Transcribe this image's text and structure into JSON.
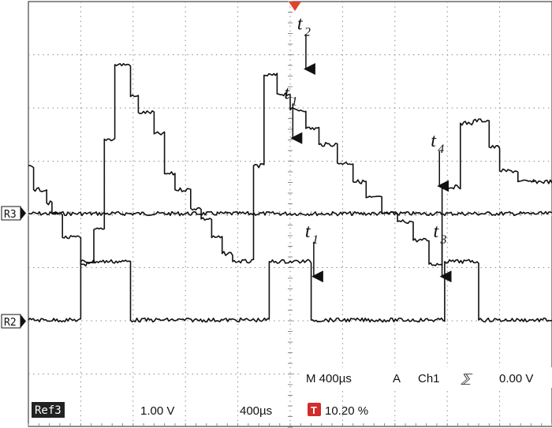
{
  "chart_data": {
    "type": "line",
    "title": "",
    "xlabel": "",
    "ylabel": "",
    "grid": true,
    "x_divisions": 10,
    "y_divisions": 8,
    "series": [
      {
        "name": "",
        "role": "reference-flat",
        "x": [
          0,
          10
        ],
        "y": [
          0,
          0
        ]
      },
      {
        "name": "",
        "role": "upper-step-waveform",
        "x": [
          0.0,
          0.1,
          0.1,
          0.35,
          0.35,
          0.45,
          0.45,
          0.65,
          0.65,
          1.0,
          1.0,
          1.25,
          1.25,
          1.45,
          1.45,
          1.65,
          1.65,
          1.95,
          1.95,
          2.1,
          2.1,
          2.4,
          2.4,
          2.6,
          2.6,
          2.8,
          2.8,
          3.1,
          3.1,
          3.3,
          3.3,
          3.5,
          3.5,
          3.7,
          3.7,
          3.9,
          3.9,
          4.3,
          4.3,
          4.5,
          4.5,
          4.75,
          4.75,
          5.0,
          5.0,
          5.3,
          5.3,
          5.55,
          5.55,
          5.9,
          5.9,
          6.2,
          6.2,
          6.45,
          6.45,
          6.75,
          6.75,
          7.05,
          7.05,
          7.35,
          7.35,
          7.65,
          7.65,
          7.9,
          7.9,
          8.25,
          8.25,
          8.5,
          8.5,
          8.8,
          8.8,
          9.0,
          9.0,
          9.35,
          9.35,
          9.65,
          9.65,
          10.0
        ],
        "y": [
          0.9,
          0.9,
          0.45,
          0.45,
          0.2,
          0.2,
          0.0,
          0.0,
          -0.45,
          -0.45,
          -0.95,
          -0.95,
          -0.3,
          -0.3,
          1.4,
          1.4,
          2.8,
          2.8,
          2.2,
          2.2,
          1.9,
          1.9,
          1.5,
          1.5,
          0.75,
          0.75,
          0.45,
          0.45,
          0.1,
          0.1,
          -0.1,
          -0.1,
          -0.45,
          -0.45,
          -0.75,
          -0.75,
          -0.9,
          -0.9,
          0.9,
          0.9,
          2.6,
          2.6,
          2.25,
          2.25,
          1.95,
          1.95,
          1.6,
          1.6,
          1.3,
          1.3,
          0.95,
          0.95,
          0.6,
          0.6,
          0.3,
          0.3,
          0.0,
          0.0,
          -0.15,
          -0.15,
          -0.5,
          -0.5,
          -0.95,
          -0.95,
          0.5,
          0.5,
          1.7,
          1.7,
          1.75,
          1.75,
          1.25,
          1.25,
          0.8,
          0.8,
          0.6,
          0.6,
          0.6,
          0.6
        ]
      },
      {
        "name": "",
        "role": "lower-pulse-waveform",
        "x": [
          0.0,
          1.0,
          1.0,
          1.95,
          1.95,
          4.6,
          4.6,
          5.4,
          5.4,
          7.95,
          7.95,
          8.6,
          8.6,
          10.0
        ],
        "y": [
          -2.0,
          -2.0,
          -0.9,
          -0.9,
          -2.0,
          -2.0,
          -0.9,
          -0.9,
          -2.0,
          -2.0,
          -0.9,
          -0.9,
          -2.0,
          -2.0
        ]
      }
    ],
    "annotations": [
      {
        "label": "t",
        "sub": "2",
        "arrow_x": 5.3,
        "arrow_to_y": 2.6
      },
      {
        "label": "t",
        "sub": "1",
        "arrow_x": 5.05,
        "arrow_to_y": 1.3
      },
      {
        "label": "t",
        "sub": "4",
        "arrow_x": 7.85,
        "arrow_to_y": 0.4
      },
      {
        "label": "t",
        "sub": "1",
        "arrow_x": 5.45,
        "arrow_to_y": -1.3
      },
      {
        "label": "t",
        "sub": "3",
        "arrow_x": 7.9,
        "arrow_to_y": -1.3
      }
    ]
  },
  "markers": {
    "ref_upper": "R3",
    "ref_lower": "R2"
  },
  "readout": {
    "timebase": "M 400µs",
    "trigger_mode": "A",
    "channel": "Ch1",
    "slope_glyph": "⅀",
    "trigger_level": "0.00 V",
    "ref_label": "Ref3",
    "ref_volts": "1.00 V",
    "ref_time": "400µs",
    "trigger_badge": "T",
    "percent": "10.20 %"
  },
  "colors": {
    "trace": "#111111",
    "grid": "#8a8a8a",
    "trigger_marker": "#e0452b",
    "channel_text": "#6b6b00",
    "badge_bg": "#d42b2b",
    "ref_label_bg": "#222222"
  }
}
